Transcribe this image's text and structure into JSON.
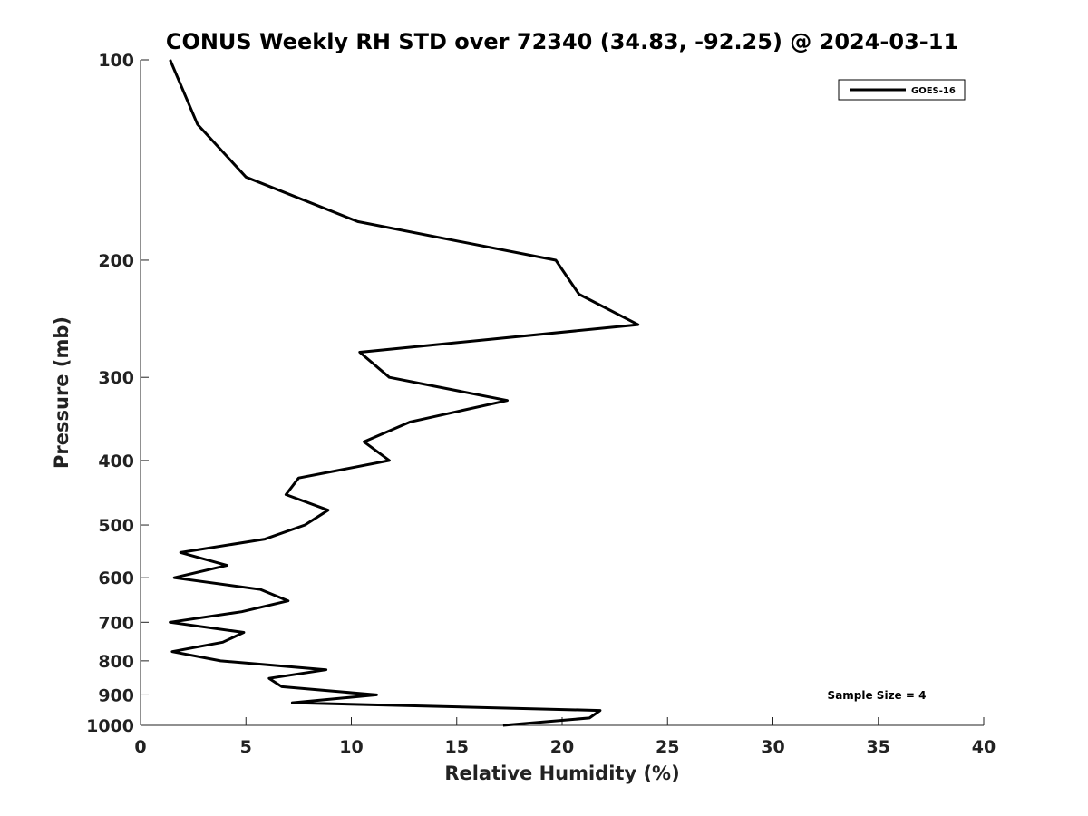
{
  "chart_data": {
    "type": "line",
    "title": "CONUS Weekly RH STD over 72340 (34.83, -92.25) @ 2024-03-11",
    "xlabel": "Relative Humidity (%)",
    "ylabel": "Pressure (mb)",
    "xlim": [
      0,
      40
    ],
    "ylim": [
      1000,
      100
    ],
    "y_scale": "log",
    "y_reversed": true,
    "x_ticks": [
      0,
      5,
      10,
      15,
      20,
      25,
      30,
      35,
      40
    ],
    "y_ticks": [
      100,
      200,
      300,
      400,
      500,
      600,
      700,
      800,
      900,
      1000
    ],
    "grid": false,
    "legend_position": "top-right",
    "series": [
      {
        "name": "GOES-16",
        "color": "#000000",
        "points": [
          [
            1.4,
            100
          ],
          [
            2.7,
            125
          ],
          [
            5.0,
            150
          ],
          [
            10.3,
            175
          ],
          [
            19.7,
            200
          ],
          [
            20.8,
            225
          ],
          [
            23.6,
            250
          ],
          [
            10.4,
            275
          ],
          [
            11.8,
            300
          ],
          [
            17.4,
            325
          ],
          [
            12.8,
            350
          ],
          [
            10.6,
            375
          ],
          [
            11.8,
            400
          ],
          [
            7.5,
            425
          ],
          [
            6.9,
            450
          ],
          [
            8.9,
            475
          ],
          [
            7.8,
            500
          ],
          [
            5.9,
            525
          ],
          [
            1.9,
            550
          ],
          [
            4.1,
            575
          ],
          [
            1.6,
            600
          ],
          [
            5.7,
            625
          ],
          [
            7.0,
            650
          ],
          [
            4.8,
            675
          ],
          [
            1.4,
            700
          ],
          [
            4.9,
            725
          ],
          [
            3.9,
            750
          ],
          [
            1.5,
            775
          ],
          [
            3.8,
            800
          ],
          [
            8.8,
            825
          ],
          [
            6.1,
            850
          ],
          [
            6.7,
            875
          ],
          [
            11.2,
            900
          ],
          [
            7.2,
            925
          ],
          [
            21.8,
            950
          ],
          [
            21.3,
            975
          ],
          [
            17.2,
            1000
          ]
        ]
      }
    ],
    "annotation": "Sample Size = 4"
  }
}
